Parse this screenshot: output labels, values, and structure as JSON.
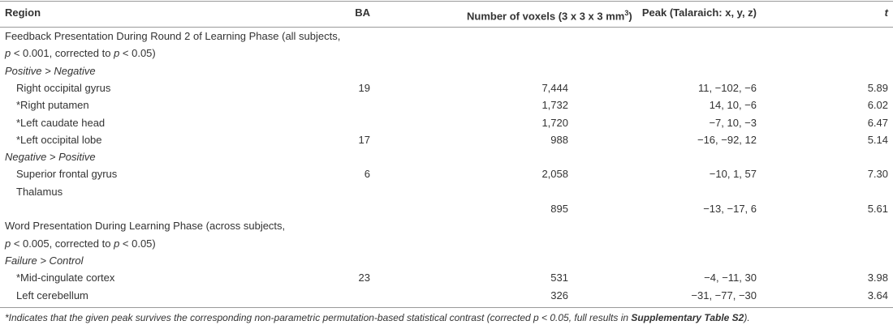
{
  "table": {
    "header": {
      "region": "Region",
      "ba": "BA",
      "voxels": {
        "text": "Number of voxels (3 x 3 x 3 mm",
        "sup": "3",
        "end": ")"
      },
      "peak": "Peak (Talaraich: x, y, z)",
      "t": "t"
    },
    "rows": [
      {
        "kind": "section",
        "lines": [
          [
            {
              "text": "Feedback Presentation During Round 2 of Learning Phase (all subjects,"
            }
          ],
          [
            {
              "text": "p",
              "italic": true
            },
            {
              "text": " < 0.001, corrected to "
            },
            {
              "text": "p",
              "italic": true
            },
            {
              "text": " < 0.05)"
            }
          ]
        ]
      },
      {
        "kind": "subsection",
        "label": "Positive > Negative"
      },
      {
        "kind": "data",
        "region": "Right occipital gyrus",
        "ba": 19,
        "voxels": "7,444",
        "peak": "11, −102, −6",
        "t": "5.89"
      },
      {
        "kind": "data",
        "region": "*Right putamen",
        "voxels": "1,732",
        "peak": "14, 10, −6",
        "t": "6.02"
      },
      {
        "kind": "data",
        "region": "*Left caudate head",
        "voxels": "1,720",
        "peak": "−7, 10, −3",
        "t": "6.47"
      },
      {
        "kind": "data",
        "region": "*Left occipital lobe",
        "ba": 17,
        "voxels": "988",
        "peak": "−16, −92, 12",
        "t": "5.14"
      },
      {
        "kind": "subsection",
        "label": "Negative > Positive"
      },
      {
        "kind": "data",
        "region": "Superior frontal gyrus",
        "ba": 6,
        "voxels": "2,058",
        "peak": "−10, 1, 57",
        "t": "7.30"
      },
      {
        "kind": "data",
        "region": "Thalamus"
      },
      {
        "kind": "data",
        "voxels": "895",
        "peak": "−13, −17, 6",
        "t": "5.61"
      },
      {
        "kind": "section",
        "lines": [
          [
            {
              "text": "Word Presentation During Learning Phase (across subjects,"
            }
          ],
          [
            {
              "text": "p",
              "italic": true
            },
            {
              "text": " < 0.005, corrected to "
            },
            {
              "text": "p",
              "italic": true
            },
            {
              "text": " < 0.05)"
            }
          ]
        ]
      },
      {
        "kind": "subsection",
        "label": "Failure > Control"
      },
      {
        "kind": "data",
        "region": "*Mid-cingulate cortex",
        "ba": 23,
        "voxels": "531",
        "peak": "−4, −11, 30",
        "t": "3.98"
      },
      {
        "kind": "data",
        "region": "Left cerebellum",
        "voxels": "326",
        "peak": "−31, −77, −30",
        "t": "3.64"
      }
    ],
    "footnote": [
      {
        "text": "*Indicates that the given peak survives the corresponding non-parametric permutation-based statistical contrast (corrected p < 0.05, full results in "
      },
      {
        "text": "Supplementary Table S2",
        "bold": true
      },
      {
        "text": ")."
      }
    ]
  }
}
